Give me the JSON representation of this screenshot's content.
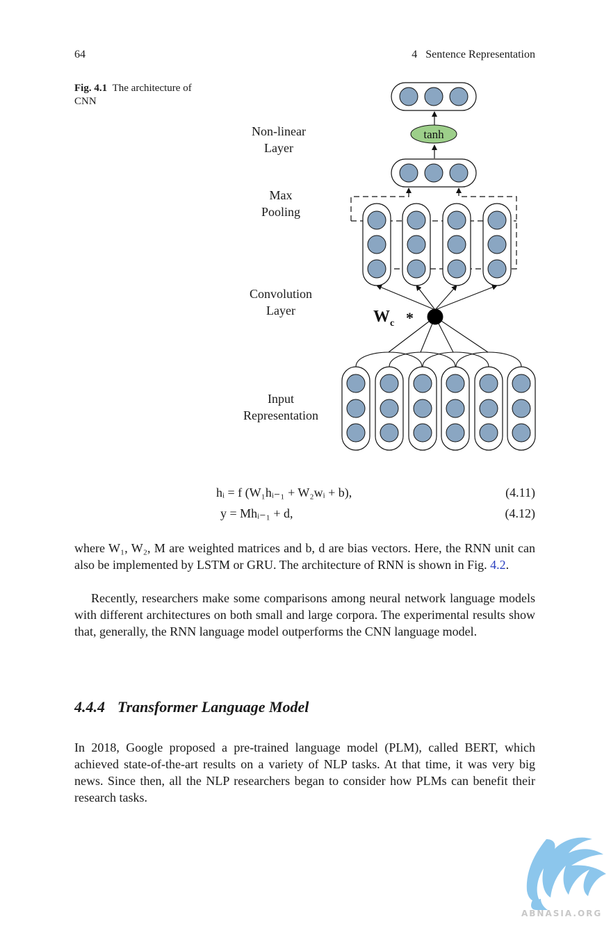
{
  "header": {
    "page_number": "64",
    "chapter_title": "4   Sentence Representation"
  },
  "figure": {
    "label": "Fig. 4.1",
    "caption": "The architecture of CNN",
    "layers": {
      "nonlinear": [
        "Non-linear",
        "Layer"
      ],
      "maxpool": [
        "Max",
        "Pooling"
      ],
      "conv": [
        "Convolution",
        "Layer"
      ],
      "input": [
        "Input",
        "Representation"
      ]
    },
    "activation_label": "tanh",
    "weight_label": "W",
    "weight_sub": "c",
    "conv_operator": "*",
    "colors": {
      "node_fill": "#8aa6c2",
      "tanh_fill": "#9dcf8a"
    }
  },
  "equations": [
    {
      "text": "hᵢ  =  f (W₁hᵢ₋₁ + W₂wᵢ + b),",
      "number": "(4.11)"
    },
    {
      "text": "y = Mhᵢ₋₁ + d,",
      "number": "(4.12)"
    }
  ],
  "para1": {
    "prefix": "where W₁, W₂, M are weighted matrices and b, d are bias vectors. Here, the RNN unit can also be implemented by LSTM or GRU. The architecture of RNN is shown in Fig. ",
    "link": "4.2",
    "suffix": "."
  },
  "para2": "Recently, researchers make some comparisons among neural network language models with different architectures on both small and large corpora. The experimental results show that, generally, the RNN language model outperforms the CNN language model.",
  "section": {
    "number": "4.4.4",
    "title": "Transformer Language Model"
  },
  "para3": "In 2018, Google proposed a pre-trained language model (PLM), called BERT, which achieved state-of-the-art results on a variety of NLP tasks. At that time, it was very big news. Since then, all the NLP researchers began to consider how PLMs can benefit their research tasks.",
  "watermark": {
    "text": "ABNASIA.ORG"
  }
}
